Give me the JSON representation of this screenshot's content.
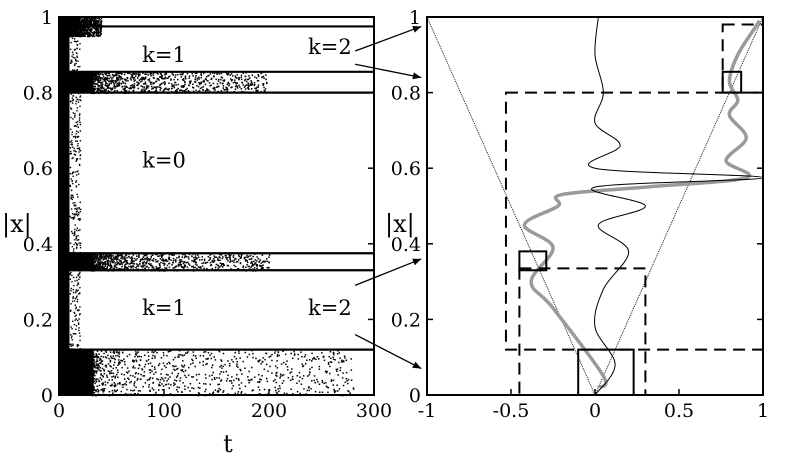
{
  "chart_data": [
    {
      "type": "scatter",
      "xlabel": "t",
      "ylabel": "|x|",
      "xlim": [
        0,
        300
      ],
      "ylim": [
        0,
        1
      ],
      "xticks": [
        "0",
        "100",
        "200",
        "300"
      ],
      "yticks": [
        "0",
        "0.2",
        "0.4",
        "0.6",
        "0.8",
        "1"
      ],
      "grid": false,
      "bands": [
        {
          "y_from": 0.0,
          "y_to": 0.12,
          "dense_until_t": 60,
          "scatter_until_t": 280
        },
        {
          "y_from": 0.33,
          "y_to": 0.375,
          "dense_until_t": 60,
          "scatter_until_t": 200
        },
        {
          "y_from": 0.8,
          "y_to": 0.855,
          "dense_until_t": 60,
          "scatter_until_t": 200
        },
        {
          "y_from": 0.95,
          "y_to": 1.0,
          "dense_until_t": 20,
          "scatter_until_t": 40
        }
      ],
      "horizontal_lines": [
        0.12,
        0.33,
        0.375,
        0.8,
        0.855,
        0.975
      ],
      "annotations": [
        {
          "text": "k=1",
          "x": 100,
          "y": 0.9
        },
        {
          "text": "k=2",
          "x": 258,
          "y": 0.92
        },
        {
          "text": "k=0",
          "x": 100,
          "y": 0.62
        },
        {
          "text": "k=1",
          "x": 100,
          "y": 0.23
        },
        {
          "text": "k=2",
          "x": 258,
          "y": 0.23
        }
      ]
    },
    {
      "type": "line",
      "xlabel": "",
      "ylabel": "|x|",
      "xlim": [
        -1,
        1
      ],
      "ylim": [
        0,
        1
      ],
      "xticks": [
        "-1",
        "-0.5",
        "0",
        "0.5",
        "1"
      ],
      "yticks": [
        "0",
        "0.2",
        "0.4",
        "0.6",
        "0.8",
        "1"
      ],
      "grid": false,
      "series": [
        {
          "style": "thin-dotted",
          "points": [
            [
              -1,
              1
            ],
            [
              0,
              0
            ],
            [
              1,
              1
            ]
          ]
        },
        {
          "style": "thick-gray",
          "points": [
            [
              0.02,
              0.02
            ],
            [
              0.05,
              0.05
            ],
            [
              -0.25,
              0.23
            ],
            [
              -0.38,
              0.3
            ],
            [
              -0.25,
              0.39
            ],
            [
              -0.42,
              0.45
            ],
            [
              -0.22,
              0.5
            ],
            [
              -0.2,
              0.53
            ],
            [
              0.3,
              0.55
            ],
            [
              0.9,
              0.575
            ],
            [
              0.78,
              0.62
            ],
            [
              0.9,
              0.68
            ],
            [
              0.8,
              0.74
            ],
            [
              0.85,
              0.78
            ],
            [
              0.8,
              0.83
            ],
            [
              0.85,
              0.9
            ],
            [
              0.95,
              0.97
            ],
            [
              0.98,
              0.99
            ]
          ]
        },
        {
          "style": "thin-black",
          "points": [
            [
              0,
              0
            ],
            [
              0.12,
              0.08
            ],
            [
              0.0,
              0.18
            ],
            [
              0.05,
              0.28
            ],
            [
              0.2,
              0.38
            ],
            [
              0.02,
              0.45
            ],
            [
              0.3,
              0.5
            ],
            [
              0.0,
              0.55
            ],
            [
              1.0,
              0.575
            ],
            [
              0.0,
              0.6
            ],
            [
              0.15,
              0.66
            ],
            [
              0.0,
              0.72
            ],
            [
              0.05,
              0.8
            ],
            [
              0.0,
              0.9
            ],
            [
              0.02,
              1.0
            ]
          ]
        }
      ],
      "boxes": [
        {
          "x": [
            -0.45,
            0.3
          ],
          "y": [
            0.0,
            0.335
          ],
          "dash": true
        },
        {
          "x": [
            -0.53,
            1.0
          ],
          "y": [
            0.12,
            0.8
          ],
          "dash": true
        },
        {
          "x": [
            0.76,
            1.0
          ],
          "y": [
            0.8,
            0.98
          ],
          "dash": true
        },
        {
          "x": [
            -0.1,
            0.23
          ],
          "y": [
            0.0,
            0.12
          ],
          "dash": false
        },
        {
          "x": [
            -0.45,
            -0.29
          ],
          "y": [
            0.33,
            0.38
          ],
          "dash": false
        },
        {
          "x": [
            0.76,
            0.87
          ],
          "y": [
            0.8,
            0.855
          ],
          "dash": false
        }
      ]
    }
  ]
}
